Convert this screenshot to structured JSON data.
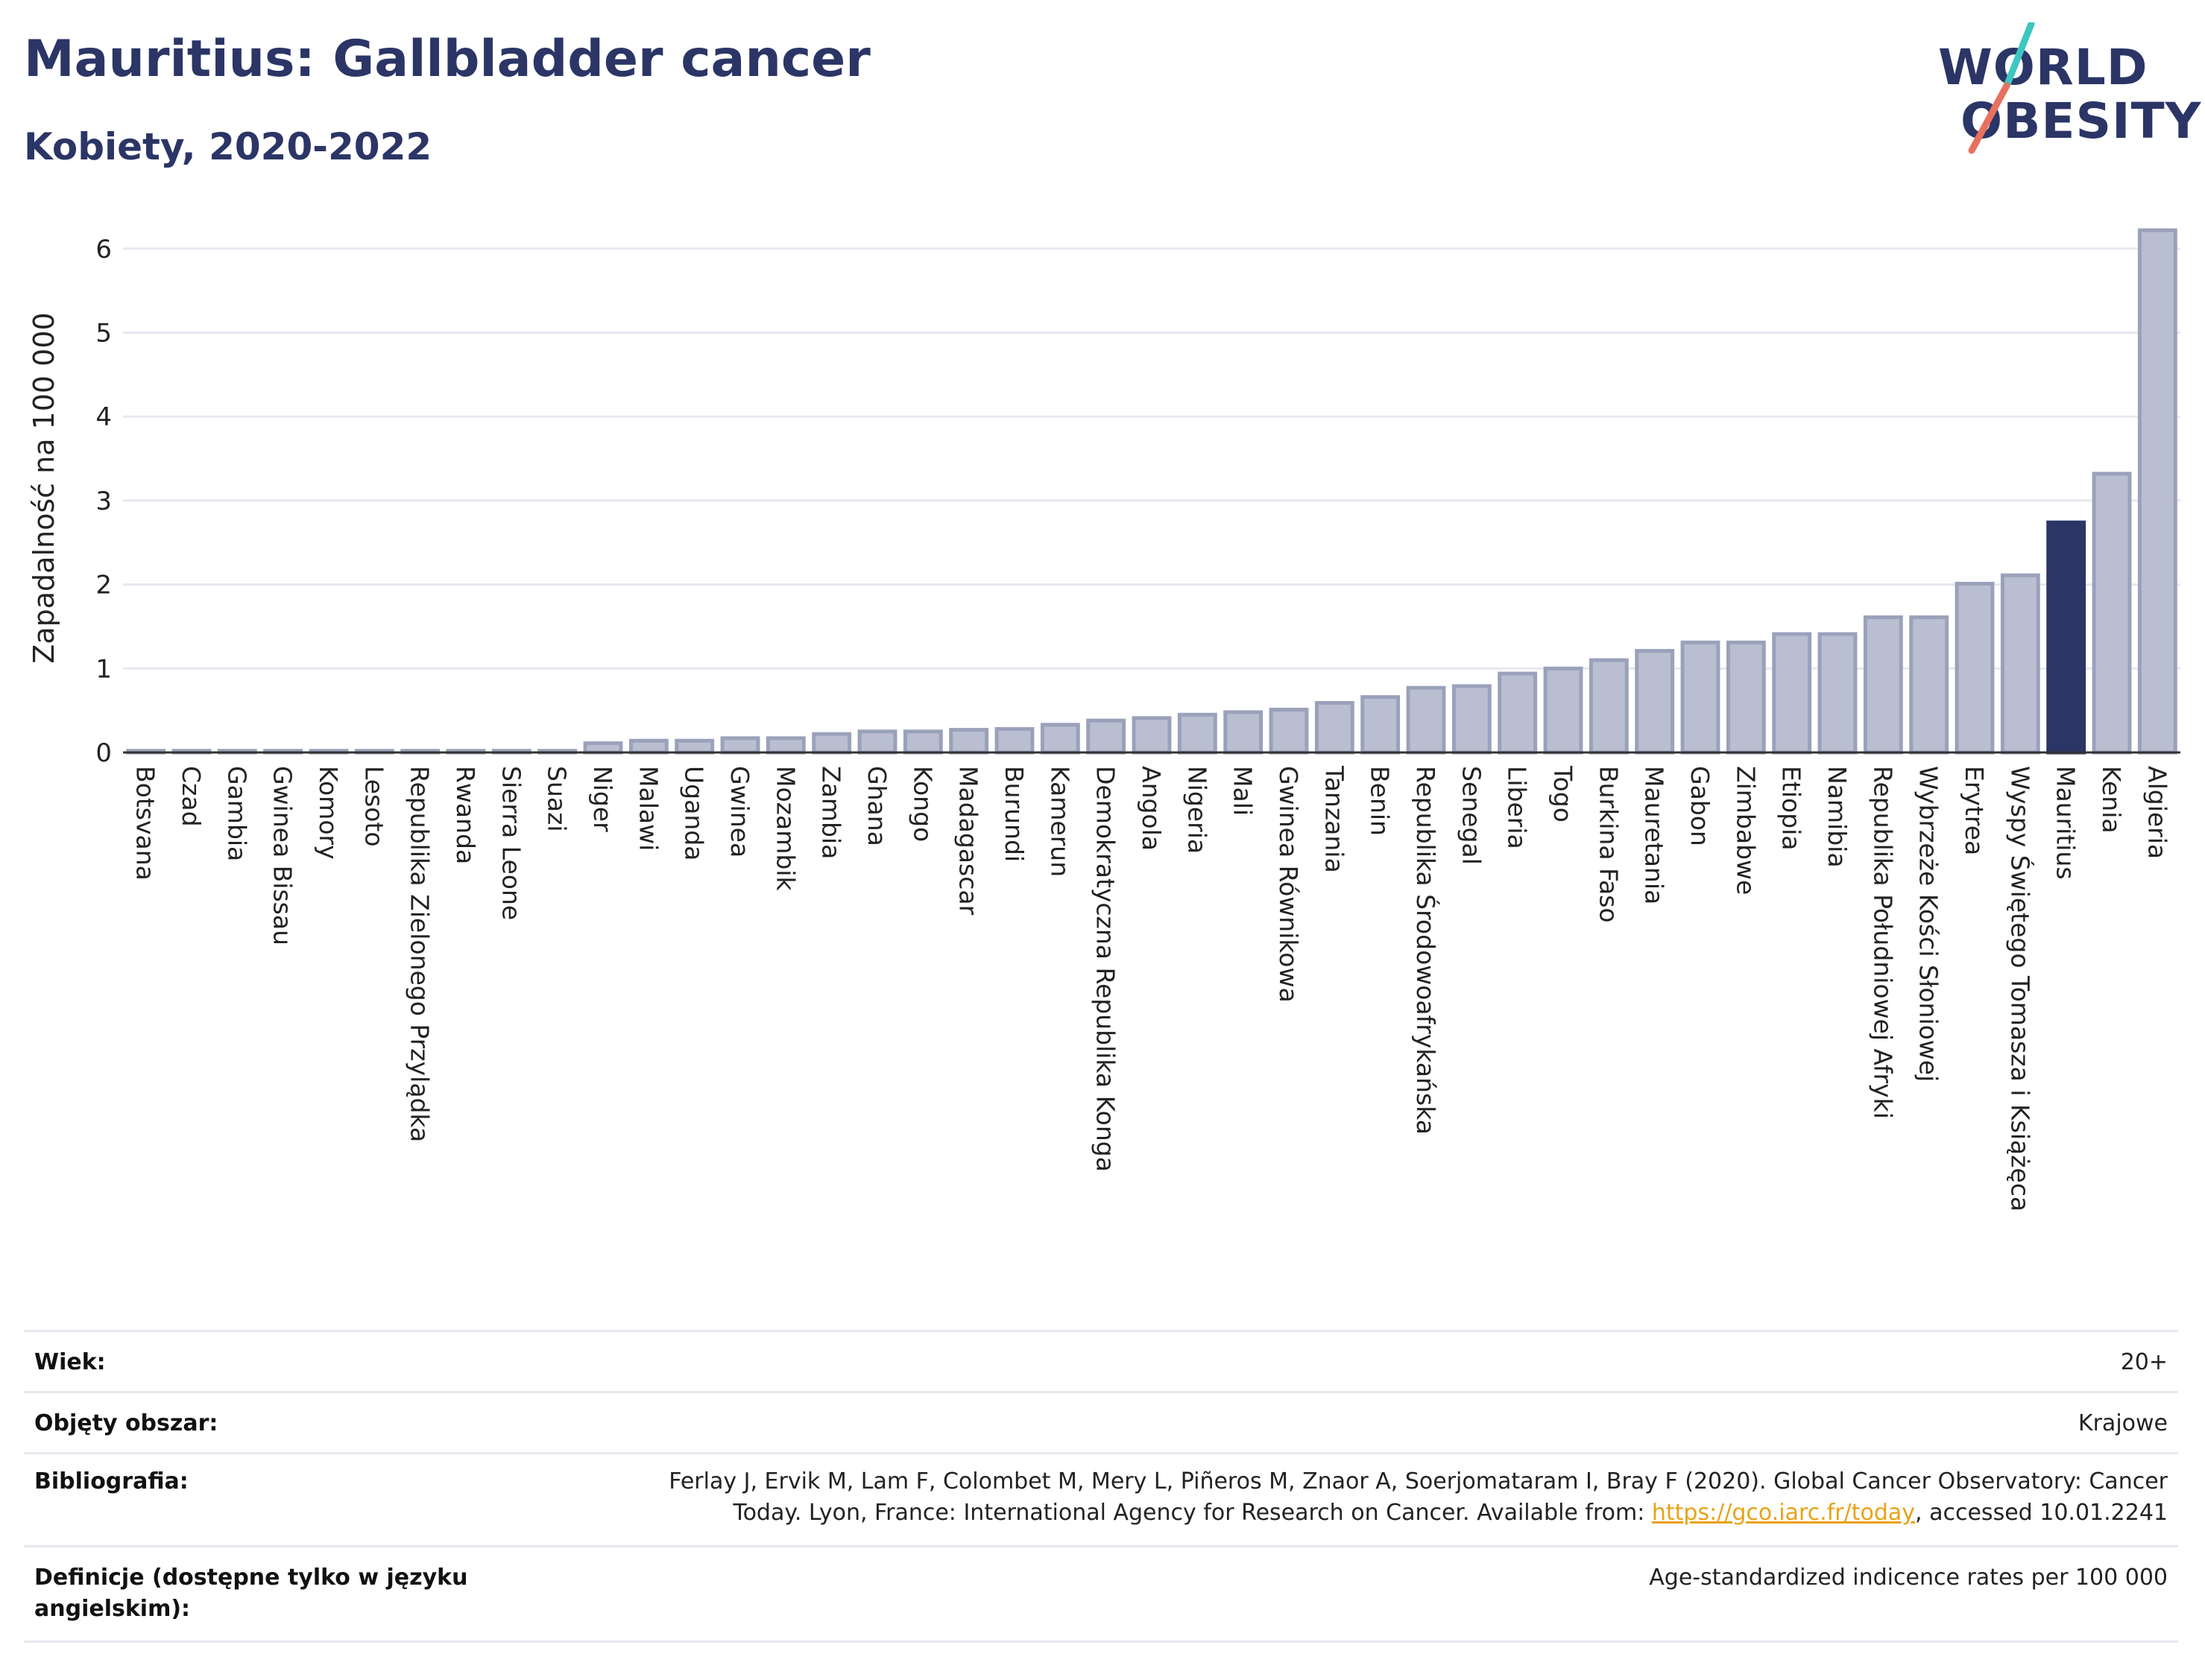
{
  "header": {
    "title": "Mauritius: Gallbladder cancer",
    "subtitle": "Kobiety, 2020-2022"
  },
  "logo": {
    "line1": "WORLD",
    "line2": "OBESITY",
    "slash_colors": [
      "#3ec6c1",
      "#e8705f"
    ]
  },
  "colors": {
    "bar_fill": "#b9bfd0",
    "bar_stroke": "#9aa1ba",
    "highlight": "#2b3566",
    "grid": "#e6e8ef",
    "axis": "#333333"
  },
  "chart_data": {
    "type": "bar",
    "ylabel": "Zapadalność na 100 000",
    "ylim": [
      0,
      6.3
    ],
    "yticks": [
      0,
      1,
      2,
      3,
      4,
      5,
      6
    ],
    "highlight": "Mauritius",
    "grid": true,
    "categories": [
      "Botsvana",
      "Czad",
      "Gambia",
      "Gwinea Bissau",
      "Komory",
      "Lesoto",
      "Republika Zielonego Przylądka",
      "Rwanda",
      "Sierra Leone",
      "Suazi",
      "Niger",
      "Malawi",
      "Uganda",
      "Gwinea",
      "Mozambik",
      "Zambia",
      "Ghana",
      "Kongo",
      "Madagascar",
      "Burundi",
      "Kamerun",
      "Demokratyczna Republika Konga",
      "Angola",
      "Nigeria",
      "Mali",
      "Gwinea Równikowa",
      "Tanzania",
      "Benin",
      "Republika Środowoafrykańska",
      "Senegal",
      "Liberia",
      "Togo",
      "Burkina Faso",
      "Mauretania",
      "Gabon",
      "Zimbabwe",
      "Etiopia",
      "Namibia",
      "Republika Południowej Afryki",
      "Wybrzeże Kości Słoniowej",
      "Erytrea",
      "Wyspy Świętego Tomasza i Książęca",
      "Mauritius",
      "Kenia",
      "Algieria"
    ],
    "values": [
      0.02,
      0.02,
      0.02,
      0.02,
      0.02,
      0.02,
      0.02,
      0.02,
      0.02,
      0.02,
      0.11,
      0.14,
      0.14,
      0.17,
      0.17,
      0.22,
      0.25,
      0.25,
      0.27,
      0.28,
      0.33,
      0.38,
      0.41,
      0.45,
      0.48,
      0.51,
      0.59,
      0.66,
      0.77,
      0.79,
      0.94,
      1.0,
      1.1,
      1.21,
      1.31,
      1.31,
      1.41,
      1.41,
      1.61,
      1.61,
      2.01,
      2.11,
      2.74,
      3.32,
      6.22
    ]
  },
  "info": {
    "rows": [
      {
        "label": "Wiek:",
        "value": "20+"
      },
      {
        "label": "Objęty obszar:",
        "value": "Krajowe"
      },
      {
        "label": "Bibliografia:",
        "value_line1": "Ferlay J, Ervik M, Lam F, Colombet M, Mery L, Piñeros M, Znaor A, Soerjomataram I, Bray F (2020). Global Cancer Observatory: Cancer",
        "value_line2_pre": "Today. Lyon, France: International Agency for Research on Cancer. Available from: ",
        "link": "https://gco.iarc.fr/today",
        "value_line2_post": ", accessed 10.01.2241"
      },
      {
        "label_line1": "Definicje (dostępne tylko w języku",
        "label_line2": "angielskim):",
        "value": "Age-standardized indicence rates per 100 000"
      }
    ]
  }
}
